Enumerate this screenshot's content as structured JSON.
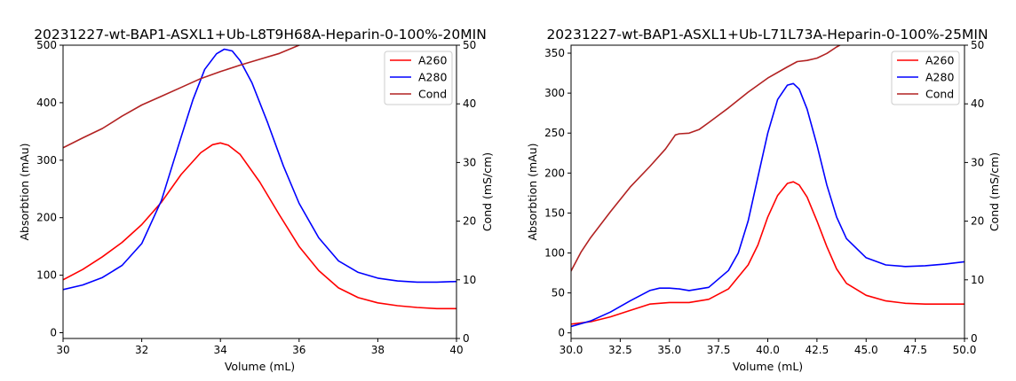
{
  "chart_data": [
    {
      "type": "line",
      "title": "20231227-wt-BAP1-ASXL1+Ub-L8T9H68A-Heparin-0-100%-20MIN",
      "xlabel": "Volume (mL)",
      "ylabel": "Absorbtion (mAu)",
      "y2label": "Cond (mS/cm)",
      "xlim": [
        30,
        40
      ],
      "ylim": [
        -10,
        500
      ],
      "y2lim": [
        0,
        50
      ],
      "xticks": [
        30,
        32,
        34,
        36,
        38,
        40
      ],
      "xtick_labels": [
        "30",
        "32",
        "34",
        "36",
        "38",
        "40"
      ],
      "yticks": [
        0,
        100,
        200,
        300,
        400,
        500
      ],
      "ytick_labels": [
        "0",
        "100",
        "200",
        "300",
        "400",
        "500"
      ],
      "y2ticks": [
        0,
        10,
        20,
        30,
        40,
        50
      ],
      "y2tick_labels": [
        "0",
        "10",
        "20",
        "30",
        "40",
        "50"
      ],
      "legend": "top-right",
      "grid": false,
      "series": [
        {
          "name": "A260",
          "color": "#ff0000",
          "axis": "left",
          "x": [
            30,
            30.5,
            31,
            31.5,
            32,
            32.5,
            33,
            33.5,
            33.8,
            34,
            34.2,
            34.5,
            35,
            35.5,
            36,
            36.5,
            37,
            37.5,
            38,
            38.5,
            39,
            39.5,
            40
          ],
          "y": [
            92,
            110,
            132,
            157,
            188,
            227,
            275,
            313,
            327,
            330,
            326,
            310,
            262,
            205,
            150,
            108,
            78,
            61,
            52,
            47,
            44,
            42,
            42
          ]
        },
        {
          "name": "A280",
          "color": "#0000ff",
          "axis": "left",
          "x": [
            30,
            30.5,
            31,
            31.5,
            32,
            32.5,
            33,
            33.3,
            33.6,
            33.9,
            34.1,
            34.3,
            34.5,
            34.8,
            35.2,
            35.6,
            36,
            36.5,
            37,
            37.5,
            38,
            38.5,
            39,
            39.5,
            40
          ],
          "y": [
            75,
            83,
            96,
            117,
            155,
            230,
            340,
            405,
            458,
            485,
            493,
            490,
            473,
            435,
            365,
            290,
            225,
            165,
            125,
            105,
            95,
            90,
            88,
            88,
            89
          ]
        },
        {
          "name": "Cond",
          "color": "#b22222",
          "axis": "right",
          "x": [
            30,
            30.5,
            31,
            31.5,
            32,
            32.5,
            33,
            33.5,
            34,
            34.5,
            35,
            35.5,
            36,
            36.1
          ],
          "y": [
            32.5,
            34.2,
            35.8,
            37.9,
            39.8,
            41.3,
            42.8,
            44.3,
            45.5,
            46.6,
            47.6,
            48.6,
            50,
            50.2
          ]
        }
      ]
    },
    {
      "type": "line",
      "title": "20231227-wt-BAP1-ASXL1+Ub-L71L73A-Heparin-0-100%-25MIN",
      "xlabel": "Volume (mL)",
      "ylabel": "Absorbtion (mAu)",
      "y2label": "Cond (mS/cm)",
      "xlim": [
        30,
        50
      ],
      "ylim": [
        -7,
        360
      ],
      "y2lim": [
        0,
        50
      ],
      "xticks": [
        30,
        32.5,
        35,
        37.5,
        40,
        42.5,
        45,
        47.5,
        50
      ],
      "xtick_labels": [
        "30.0",
        "32.5",
        "35.0",
        "37.5",
        "40.0",
        "42.5",
        "45.0",
        "47.5",
        "50.0"
      ],
      "yticks": [
        0,
        50,
        100,
        150,
        200,
        250,
        300,
        350
      ],
      "ytick_labels": [
        "0",
        "50",
        "100",
        "150",
        "200",
        "250",
        "300",
        "350"
      ],
      "y2ticks": [
        0,
        10,
        20,
        30,
        40,
        50
      ],
      "y2tick_labels": [
        "0",
        "10",
        "20",
        "30",
        "40",
        "50"
      ],
      "legend": "top-right",
      "grid": false,
      "series": [
        {
          "name": "A260",
          "color": "#ff0000",
          "axis": "left",
          "x": [
            30,
            31,
            32,
            33,
            34,
            35,
            36,
            37,
            38,
            39,
            39.5,
            40,
            40.5,
            41,
            41.3,
            41.6,
            42,
            42.5,
            43,
            43.5,
            44,
            45,
            46,
            47,
            48,
            49,
            50
          ],
          "y": [
            11,
            14,
            20,
            28,
            36,
            38,
            38,
            42,
            55,
            85,
            110,
            145,
            172,
            187,
            189,
            185,
            170,
            140,
            108,
            80,
            62,
            47,
            40,
            37,
            36,
            36,
            36
          ]
        },
        {
          "name": "A280",
          "color": "#0000ff",
          "axis": "left",
          "x": [
            30,
            31,
            32,
            33,
            34,
            34.5,
            35,
            35.5,
            36,
            37,
            38,
            38.5,
            39,
            39.5,
            40,
            40.5,
            41,
            41.3,
            41.6,
            42,
            42.5,
            43,
            43.5,
            44,
            45,
            46,
            47,
            48,
            49,
            50
          ],
          "y": [
            8,
            15,
            26,
            40,
            53,
            56,
            56,
            55,
            53,
            57,
            78,
            100,
            140,
            195,
            250,
            292,
            310,
            312,
            305,
            280,
            235,
            185,
            145,
            118,
            94,
            85,
            83,
            84,
            86,
            89
          ]
        },
        {
          "name": "Cond",
          "color": "#b22222",
          "axis": "right",
          "x": [
            30,
            30.5,
            31,
            32,
            33,
            34,
            34.8,
            35.3,
            35.5,
            36,
            36.5,
            37,
            38,
            39,
            40,
            41,
            41.5,
            42,
            42.5,
            43,
            43.5,
            44,
            44.3
          ],
          "y": [
            11.5,
            14.7,
            17.2,
            21.6,
            25.8,
            29.3,
            32.3,
            34.7,
            34.9,
            35.0,
            35.6,
            36.8,
            39.3,
            42.0,
            44.4,
            46.3,
            47.2,
            47.4,
            47.8,
            48.6,
            49.7,
            50.6,
            51.0
          ]
        }
      ]
    }
  ]
}
